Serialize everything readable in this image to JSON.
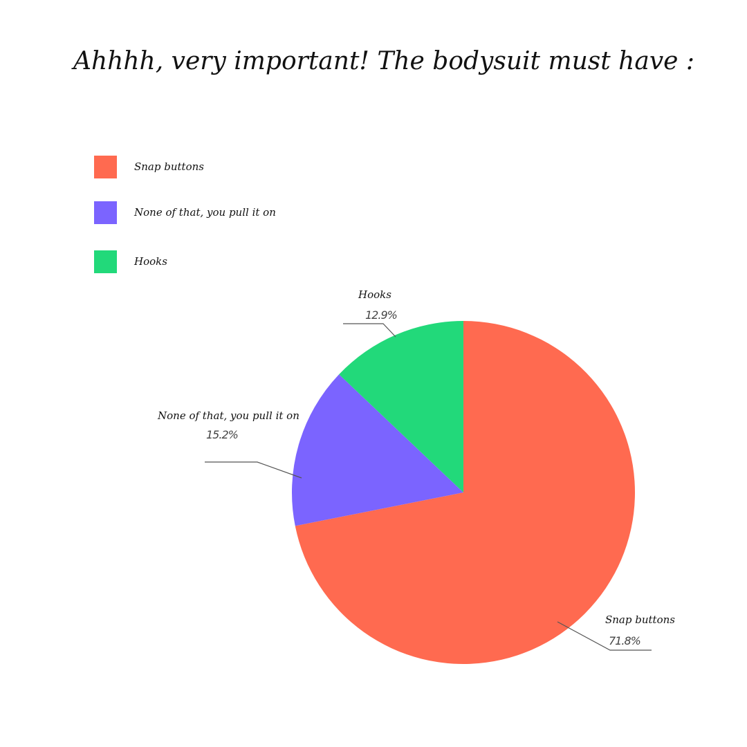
{
  "chart_data": {
    "type": "pie",
    "title": "Ahhhh, very important! The bodysuit must have :",
    "categories": [
      "Snap buttons",
      "None of that, you pull it on",
      "Hooks"
    ],
    "values": [
      71.8,
      15.2,
      12.9
    ],
    "value_labels": [
      "71.8%",
      "15.2%",
      "12.9%"
    ],
    "colors": [
      "#FF6A50",
      "#7B64FF",
      "#22D97A"
    ],
    "start_angle": "top",
    "direction": "clockwise",
    "legend_position": "top-left"
  }
}
